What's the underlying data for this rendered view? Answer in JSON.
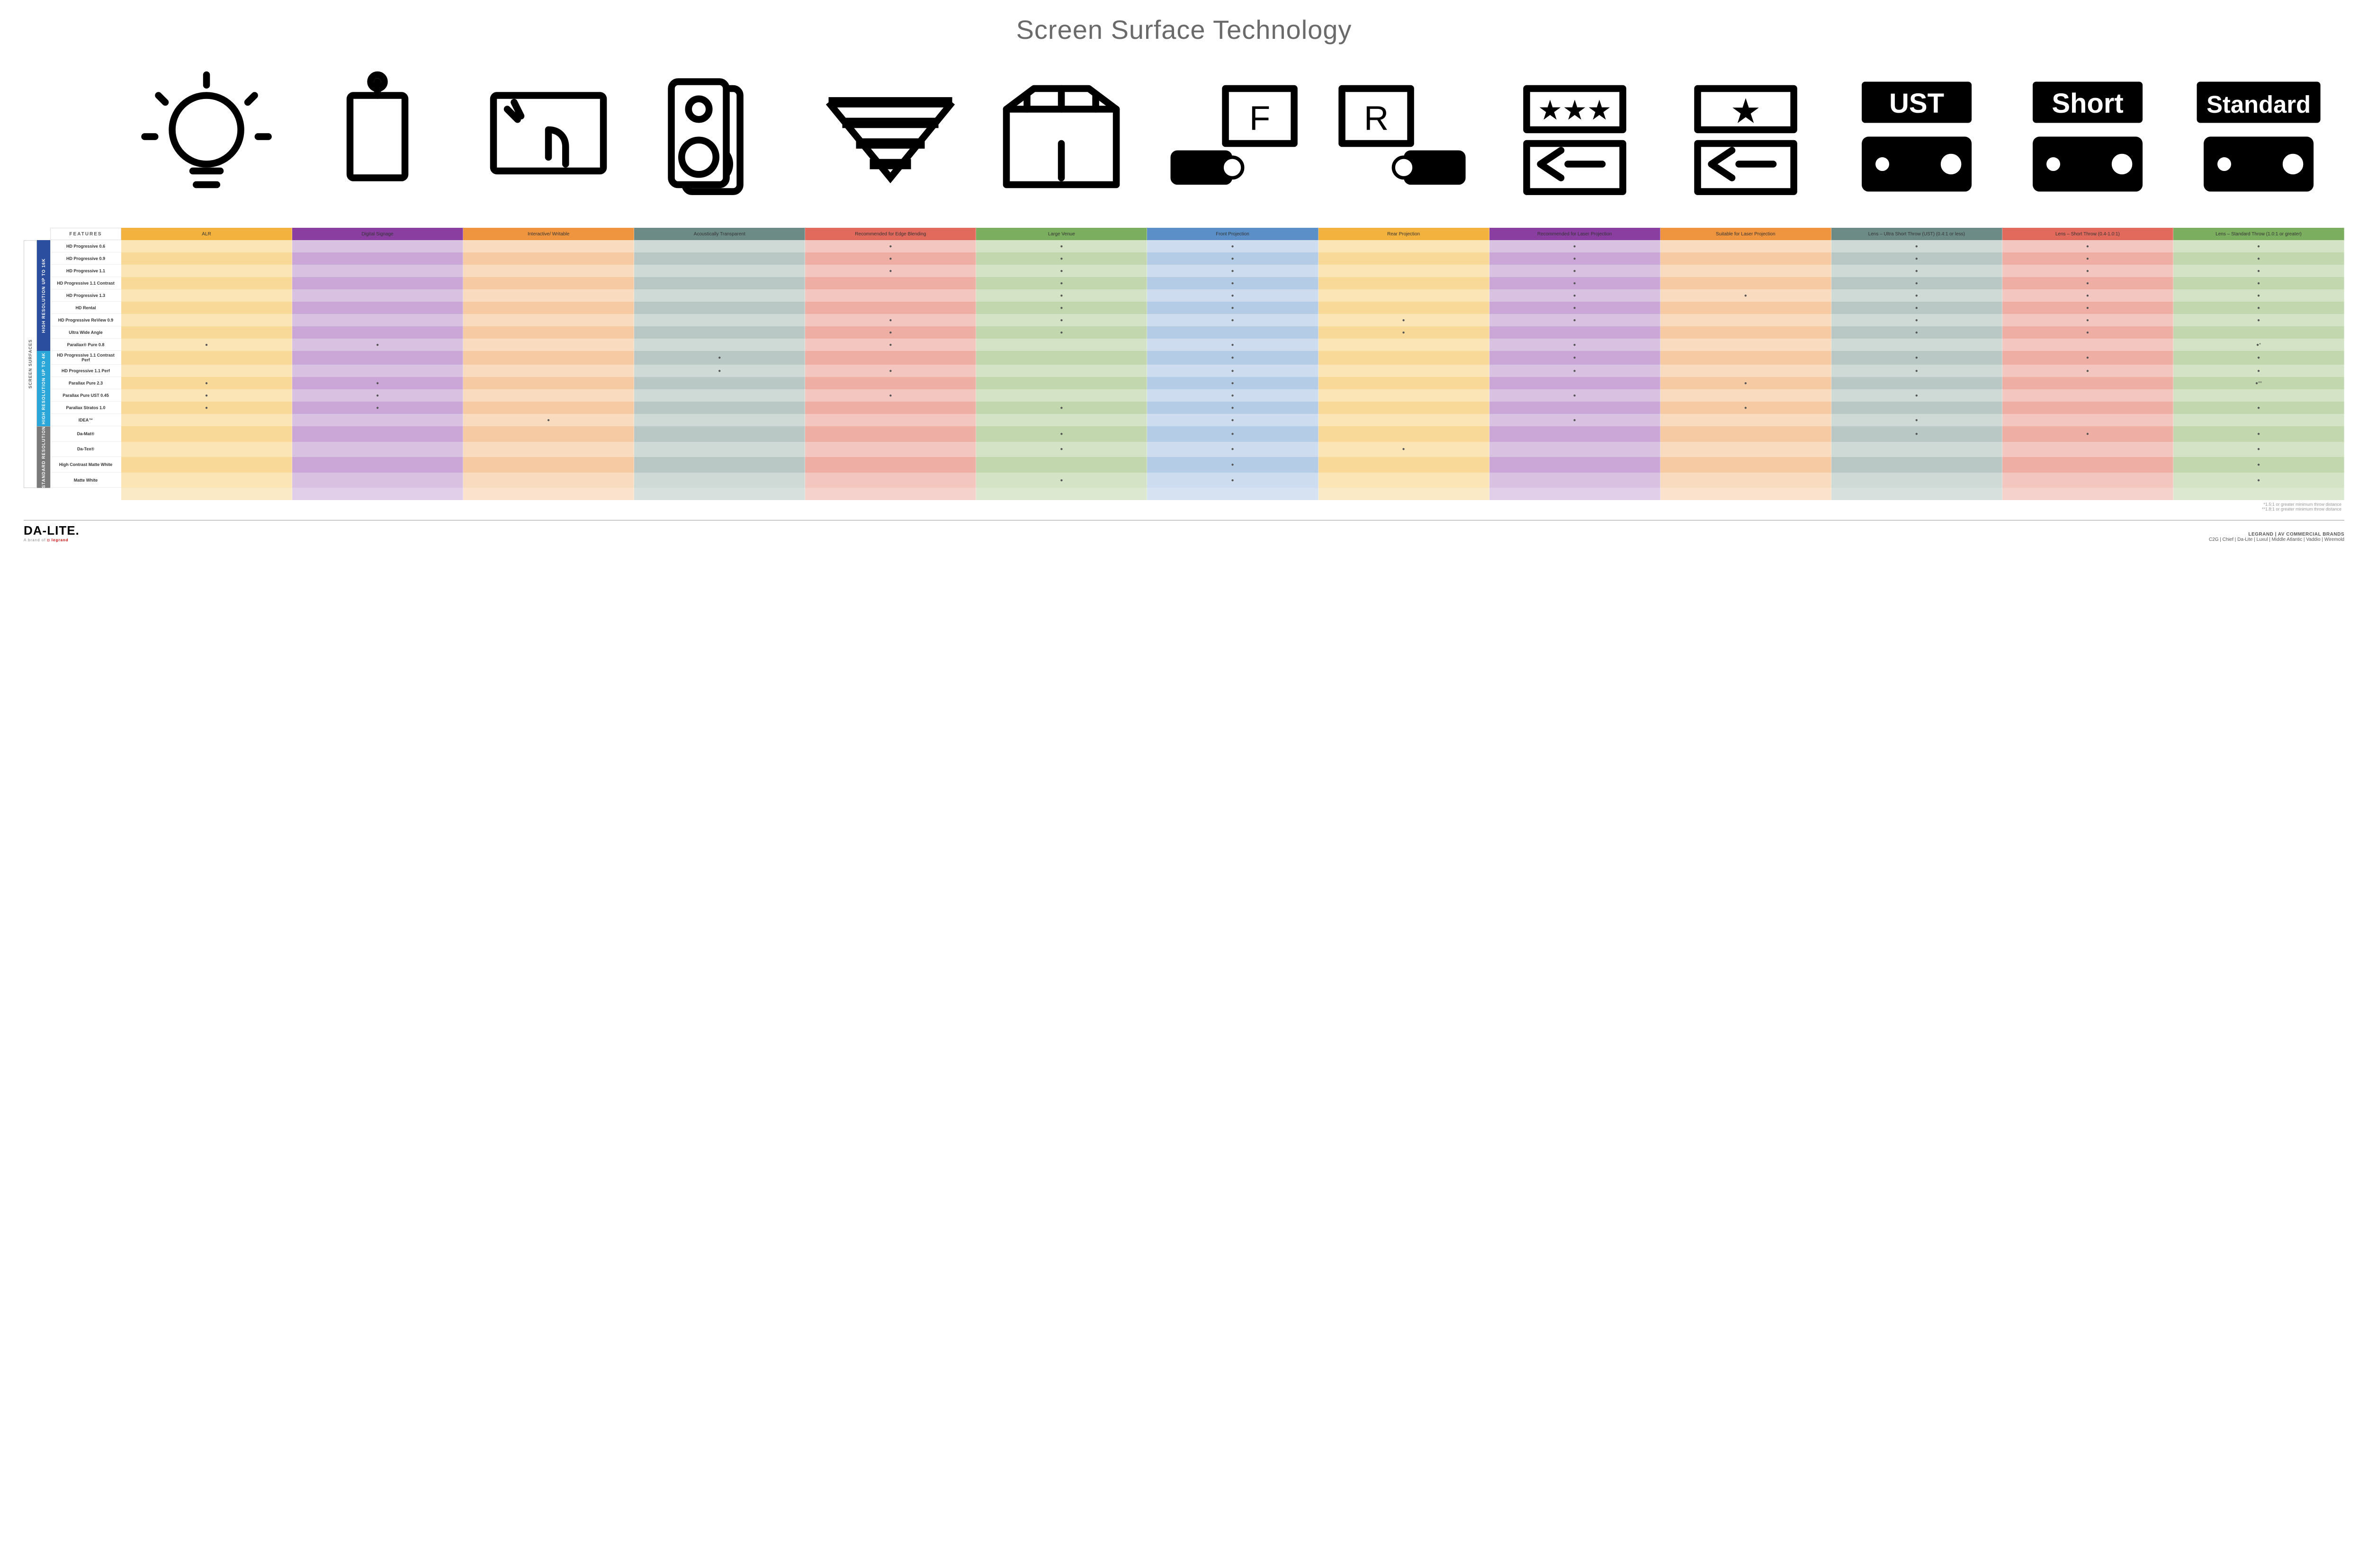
{
  "title": "Screen Surface Technology",
  "featuresLabel": "FEATURES",
  "sideOuter": "SCREEN SURFACES",
  "groups": [
    {
      "label": "HIGH RESOLUTION UP TO 16K",
      "color": "#2b4f9e",
      "rows": 9
    },
    {
      "label": "HIGH RESOLUTION UP TO 4K",
      "color": "#2aa7d8",
      "rows": 6
    },
    {
      "label": "STANDARD RESOLUTION",
      "color": "#7a7a7a",
      "rows": 4
    }
  ],
  "columns": [
    {
      "key": "alr",
      "label": "ALR",
      "color": "#f3b23e",
      "icon": "bulb"
    },
    {
      "key": "dsign",
      "label": "Digital Signage",
      "color": "#8a3fa0",
      "icon": "signage"
    },
    {
      "key": "inter",
      "label": "Interactive/ Writable",
      "color": "#f0953f",
      "icon": "touch"
    },
    {
      "key": "acous",
      "label": "Acoustically Transparent",
      "color": "#6d8b86",
      "icon": "speaker"
    },
    {
      "key": "edge",
      "label": "Recommended for Edge Blending",
      "color": "#e16a5d",
      "icon": "blend"
    },
    {
      "key": "large",
      "label": "Large Venue",
      "color": "#7bae5f",
      "icon": "venue"
    },
    {
      "key": "front",
      "label": "Front Projection",
      "color": "#5a8fc7",
      "icon": "front"
    },
    {
      "key": "rear",
      "label": "Rear Projection",
      "color": "#f3b23e",
      "icon": "rear"
    },
    {
      "key": "rlaser",
      "label": "Recommended for Laser Projection",
      "color": "#8a3fa0",
      "icon": "laserR"
    },
    {
      "key": "slaser",
      "label": "Suitable for Laser Projection",
      "color": "#f0953f",
      "icon": "laserS"
    },
    {
      "key": "ust",
      "label": "Lens – Ultra Short Throw (UST) (0.4:1 or less)",
      "color": "#6d8b86",
      "icon": "ust"
    },
    {
      "key": "short",
      "label": "Lens – Short Throw (0.4-1.0:1)",
      "color": "#e16a5d",
      "icon": "short"
    },
    {
      "key": "std",
      "label": "Lens – Standard Throw (1.0:1 or greater)",
      "color": "#7bae5f",
      "icon": "stdthrow"
    }
  ],
  "tints": {
    "alr": [
      "#fbe4b6",
      "#f8d998"
    ],
    "dsign": [
      "#d9c1e1",
      "#caa7d6"
    ],
    "inter": [
      "#f9dcc0",
      "#f6cba3"
    ],
    "acous": [
      "#cfd9d6",
      "#b9c8c4"
    ],
    "edge": [
      "#f3c6bf",
      "#eeaea4"
    ],
    "large": [
      "#d4e3c5",
      "#c2d7ad"
    ],
    "front": [
      "#cddCef",
      "#b5cce6"
    ],
    "rear": [
      "#fbe4b6",
      "#f8d998"
    ],
    "rlaser": [
      "#d9c1e1",
      "#caa7d6"
    ],
    "slaser": [
      "#f9dcc0",
      "#f6cba3"
    ],
    "ust": [
      "#cfd9d6",
      "#b9c8c4"
    ],
    "short": [
      "#f3c6bf",
      "#eeaea4"
    ],
    "std": [
      "#d4e3c5",
      "#c2d7ad"
    ]
  },
  "rows": [
    {
      "name": "HD Progressive 0.6",
      "dots": [
        "edge",
        "large",
        "front",
        "rlaser",
        "ust",
        "short",
        "std"
      ]
    },
    {
      "name": "HD Progressive 0.9",
      "dots": [
        "edge",
        "large",
        "front",
        "rlaser",
        "ust",
        "short",
        "std"
      ]
    },
    {
      "name": "HD Progressive 1.1",
      "dots": [
        "edge",
        "large",
        "front",
        "rlaser",
        "ust",
        "short",
        "std"
      ]
    },
    {
      "name": "HD Progressive 1.1 Contrast",
      "dots": [
        "large",
        "front",
        "rlaser",
        "ust",
        "short",
        "std"
      ]
    },
    {
      "name": "HD Progressive 1.3",
      "dots": [
        "large",
        "front",
        "rlaser",
        "slaser",
        "ust",
        "short",
        "std"
      ]
    },
    {
      "name": "HD Rental",
      "dots": [
        "large",
        "front",
        "rlaser",
        "ust",
        "short",
        "std"
      ]
    },
    {
      "name": "HD Progressive ReView 0.9",
      "dots": [
        "edge",
        "large",
        "front",
        "rear",
        "rlaser",
        "ust",
        "short",
        "std"
      ]
    },
    {
      "name": "Ultra Wide Angle",
      "dots": [
        "edge",
        "large",
        "rear",
        "ust",
        "short"
      ]
    },
    {
      "name": "Parallax® Pure 0.8",
      "dots": [
        "alr",
        "dsign",
        "edge",
        "front",
        "rlaser"
      ],
      "suffix": {
        "std": "●*"
      }
    },
    {
      "name": "HD Progressive 1.1 Contrast Perf",
      "dots": [
        "acous",
        "front",
        "rlaser",
        "ust",
        "short",
        "std"
      ]
    },
    {
      "name": "HD Progressive 1.1 Perf",
      "dots": [
        "acous",
        "edge",
        "front",
        "rlaser",
        "ust",
        "short",
        "std"
      ]
    },
    {
      "name": "Parallax Pure 2.3",
      "dots": [
        "alr",
        "dsign",
        "front",
        "slaser"
      ],
      "suffix": {
        "std": "●**"
      }
    },
    {
      "name": "Parallax Pure UST 0.45",
      "dots": [
        "alr",
        "dsign",
        "edge",
        "front",
        "rlaser",
        "ust"
      ]
    },
    {
      "name": "Parallax Stratos 1.0",
      "dots": [
        "alr",
        "dsign",
        "large",
        "front",
        "slaser",
        "std"
      ]
    },
    {
      "name": "IDEA™",
      "dots": [
        "inter",
        "front",
        "rlaser",
        "ust"
      ]
    },
    {
      "name": "Da-Mat®",
      "dots": [
        "large",
        "front",
        "ust",
        "short",
        "std"
      ]
    },
    {
      "name": "Da-Tex®",
      "dots": [
        "large",
        "front",
        "rear",
        "std"
      ]
    },
    {
      "name": "High Contrast Matte White",
      "dots": [
        "front",
        "std"
      ]
    },
    {
      "name": "Matte White",
      "dots": [
        "large",
        "front",
        "std"
      ]
    }
  ],
  "footnotes": [
    "*1.5:1 or greater minimum throw distance",
    "**1.8:1 or greater minimum throw distance"
  ],
  "footer": {
    "logo": "DA-LITE.",
    "logoSub": "A brand of",
    "logoBrand": "legrand",
    "brandsTop": "LEGRAND | AV COMMERCIAL BRANDS",
    "brandsList": "C2G  |  Chief  |  Da-Lite  |  Luxul  |  Middle Atlantic  |  Vaddio  |  Wiremold"
  }
}
